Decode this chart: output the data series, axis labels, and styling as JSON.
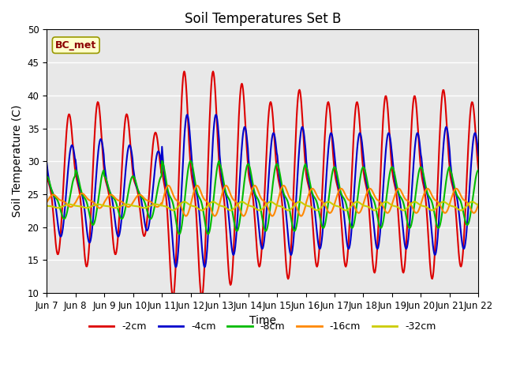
{
  "title": "Soil Temperatures Set B",
  "xlabel": "Time",
  "ylabel": "Soil Temperature (C)",
  "ylim": [
    10,
    50
  ],
  "annotation": "BC_met",
  "x_tick_labels": [
    "Jun 7",
    "Jun 8",
    "Jun 9",
    "Jun 10",
    "Jun 11",
    "Jun 12",
    "Jun 13",
    "Jun 14",
    "Jun 15",
    "Jun 16",
    "Jun 17",
    "Jun 18",
    "Jun 19",
    "Jun 20",
    "Jun 21",
    "Jun 22"
  ],
  "series_order": [
    "-2cm",
    "-4cm",
    "-8cm",
    "-16cm",
    "-32cm"
  ],
  "series": {
    "-2cm": {
      "color": "#dd0000",
      "lw": 1.5,
      "mean": 26.5,
      "amps": [
        11.5,
        13.5,
        11.5,
        8.5,
        18.5,
        18.5,
        16.5,
        13.5,
        15.5,
        13.5,
        13.5,
        14.5,
        14.5,
        15.5,
        13.5
      ],
      "phase_lag": 0.0
    },
    "-4cm": {
      "color": "#0000cc",
      "lw": 1.5,
      "mean": 25.5,
      "amps": [
        7.5,
        8.5,
        7.5,
        6.5,
        12.5,
        12.5,
        10.5,
        9.5,
        10.5,
        9.5,
        9.5,
        9.5,
        9.5,
        10.5,
        9.5
      ],
      "phase_lag": 0.1
    },
    "-8cm": {
      "color": "#00bb00",
      "lw": 1.5,
      "mean": 24.5,
      "amps": [
        3.5,
        4.5,
        3.5,
        3.5,
        6.0,
        6.0,
        5.5,
        5.5,
        5.5,
        5.0,
        5.0,
        5.0,
        5.0,
        5.0,
        4.5
      ],
      "phase_lag": 0.22
    },
    "-16cm": {
      "color": "#ff8800",
      "lw": 1.5,
      "mean": 24.0,
      "amps": [
        1.0,
        1.2,
        1.0,
        1.0,
        2.5,
        2.5,
        2.5,
        2.5,
        2.5,
        2.0,
        2.0,
        2.0,
        2.0,
        2.0,
        2.0
      ],
      "phase_lag": 0.45
    },
    "-32cm": {
      "color": "#cccc00",
      "lw": 1.5,
      "mean": 23.2,
      "amps": [
        0.3,
        0.3,
        0.3,
        0.3,
        0.7,
        0.7,
        0.7,
        0.7,
        0.7,
        0.7,
        0.7,
        0.7,
        0.7,
        0.7,
        0.7
      ],
      "phase_lag": 1.0
    }
  },
  "background_color": "#e8e8e8",
  "grid_color": "#ffffff",
  "title_fontsize": 12,
  "label_fontsize": 10,
  "tick_fontsize": 8.5
}
